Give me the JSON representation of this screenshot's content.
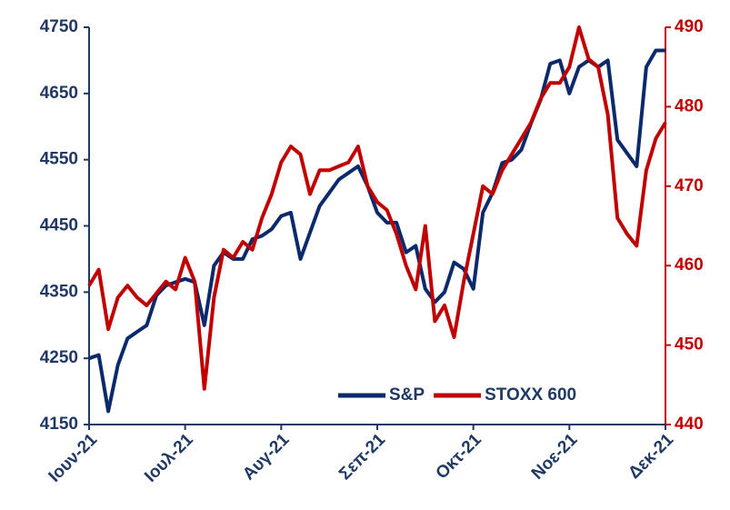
{
  "chart_data": {
    "type": "line",
    "x": [
      0,
      0.1,
      0.2,
      0.3,
      0.4,
      0.5,
      0.6,
      0.7,
      0.8,
      0.9,
      1,
      1.1,
      1.2,
      1.3,
      1.4,
      1.5,
      1.6,
      1.7,
      1.8,
      1.9,
      2,
      2.1,
      2.2,
      2.3,
      2.4,
      2.5,
      2.6,
      2.7,
      2.8,
      2.9,
      3,
      3.1,
      3.2,
      3.3,
      3.4,
      3.5,
      3.6,
      3.7,
      3.8,
      3.9,
      4,
      4.1,
      4.2,
      4.3,
      4.4,
      4.5,
      4.6,
      4.7,
      4.8,
      4.9,
      5,
      5.1,
      5.2,
      5.3,
      5.4,
      5.5,
      5.6,
      5.7,
      5.8,
      5.9,
      6
    ],
    "series": [
      {
        "name": "S&P",
        "color": "#0b2a6b",
        "axis": "y",
        "values": [
          4250,
          4255,
          4170,
          4240,
          4280,
          4290,
          4300,
          4345,
          4360,
          4365,
          4370,
          4365,
          4300,
          4390,
          4410,
          4400,
          4400,
          4430,
          4435,
          4445,
          4465,
          4470,
          4400,
          4440,
          4480,
          4500,
          4520,
          4530,
          4540,
          4510,
          4470,
          4455,
          4455,
          4410,
          4420,
          4355,
          4335,
          4350,
          4395,
          4385,
          4355,
          4470,
          4500,
          4545,
          4550,
          4565,
          4605,
          4640,
          4695,
          4700,
          4650,
          4690,
          4700,
          4690,
          4700,
          4580,
          4560,
          4540,
          4690,
          4715,
          4715
        ]
      },
      {
        "name": "STOXX 600",
        "color": "#c00000",
        "axis": "y2",
        "values": [
          457.5,
          459.5,
          452,
          456,
          457.5,
          456,
          455,
          456.5,
          458,
          457,
          461,
          458,
          444.5,
          456,
          462,
          461,
          463,
          462,
          466,
          469,
          473,
          475,
          474,
          469,
          472,
          472,
          472.5,
          473,
          475,
          470,
          468,
          467,
          464,
          460,
          457,
          465,
          453,
          455,
          451,
          458,
          464,
          470,
          469,
          472,
          474,
          476,
          478,
          481,
          483,
          483,
          485,
          490,
          486,
          485,
          479,
          466,
          464,
          462.5,
          472,
          476,
          478
        ]
      }
    ],
    "xlim": [
      0,
      6
    ],
    "xticks": [
      {
        "value": 0,
        "label": "Ιουν-21"
      },
      {
        "value": 1,
        "label": "Ιουλ-21"
      },
      {
        "value": 2,
        "label": "Αυγ-21"
      },
      {
        "value": 3,
        "label": "Σεπ-21"
      },
      {
        "value": 4,
        "label": "Οκτ-21"
      },
      {
        "value": 5,
        "label": "Νοε-21"
      },
      {
        "value": 6,
        "label": "Δεκ-21"
      }
    ],
    "ylim": [
      4150,
      4750
    ],
    "yticks": [
      4150,
      4250,
      4350,
      4450,
      4550,
      4650,
      4750
    ],
    "y2lim": [
      440,
      490
    ],
    "y2ticks": [
      440,
      450,
      460,
      470,
      480,
      490
    ],
    "legend": "lower right",
    "grid": false
  }
}
